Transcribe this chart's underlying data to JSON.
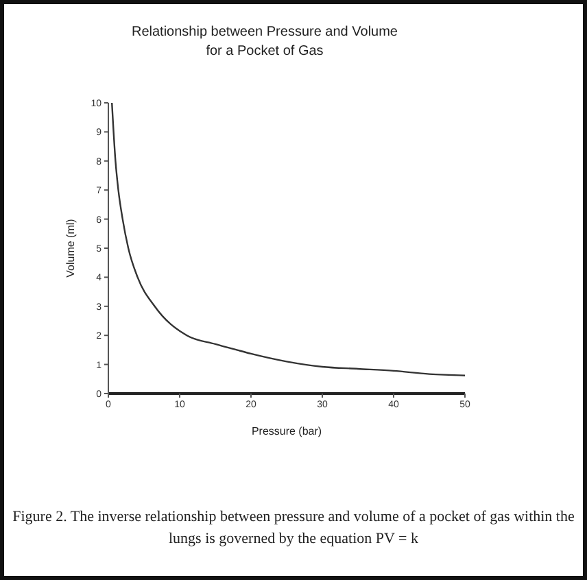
{
  "chart_data": {
    "type": "line",
    "title": "Relationship between Pressure and Volume\nfor a Pocket of Gas",
    "xlabel": "Pressure (bar)",
    "ylabel": "Volume (ml)",
    "x": [
      0.5,
      1,
      1.4,
      2,
      2.8,
      4.1,
      6.5,
      11,
      15,
      18,
      20,
      25,
      30,
      35,
      40,
      45,
      50
    ],
    "series": [
      {
        "color": "#333333",
        "values": [
          10,
          8,
          7,
          6,
          5,
          4,
          3,
          2,
          1.7,
          1.5,
          1.37,
          1.1,
          0.92,
          0.85,
          0.78,
          0.67,
          0.62
        ]
      }
    ],
    "xlim": [
      0,
      50
    ],
    "xticks": [
      0,
      10,
      20,
      30,
      40,
      50
    ],
    "ylim": [
      0,
      10
    ],
    "yticks": [
      0,
      1,
      2,
      3,
      4,
      5,
      6,
      7,
      8,
      9,
      10
    ],
    "grid": false,
    "legend": false,
    "marker": "none",
    "line_style": "solid",
    "annotations": [
      "Figure 2.  The inverse relationship between pressure and volume of a pocket of gas within the lungs is governed by the equation PV = k"
    ]
  }
}
